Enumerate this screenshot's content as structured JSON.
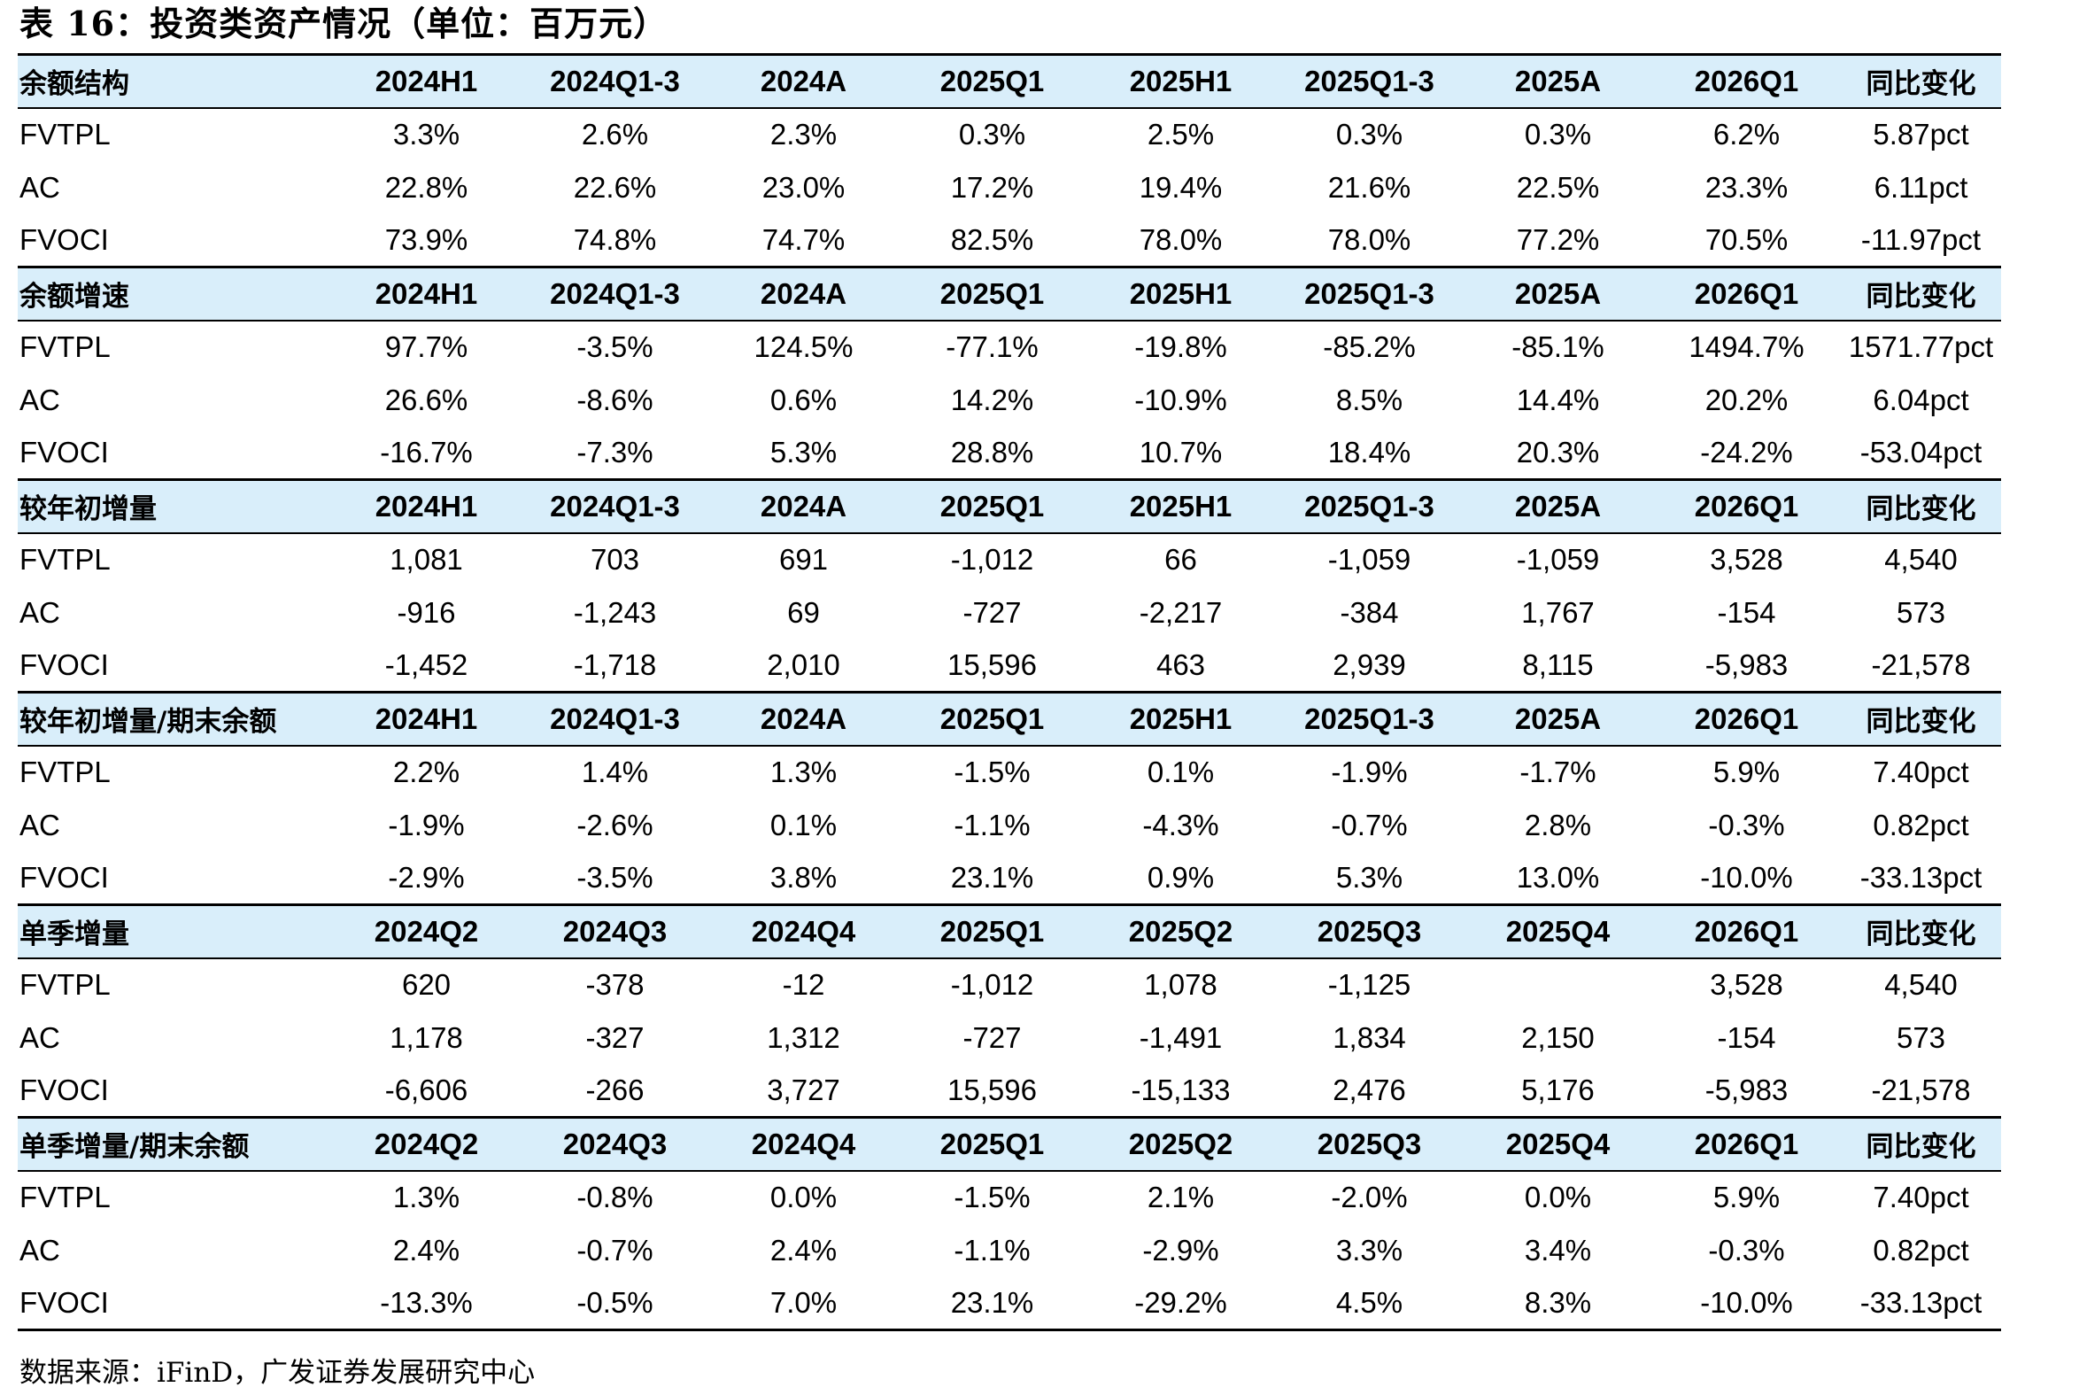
{
  "title": "表 16：投资类资产情况（单位：百万元）",
  "source": "数据来源：iFinD，广发证券发展研究中心",
  "sections": [
    {
      "label": "余额结构",
      "headers": [
        "2024H1",
        "2024Q1-3",
        "2024A",
        "2025Q1",
        "2025H1",
        "2025Q1-3",
        "2025A",
        "2026Q1",
        "同比变化"
      ],
      "rows": [
        {
          "name": "FVTPL",
          "values": [
            "3.3%",
            "2.6%",
            "2.3%",
            "0.3%",
            "2.5%",
            "0.3%",
            "0.3%",
            "6.2%",
            "5.87pct"
          ]
        },
        {
          "name": "AC",
          "values": [
            "22.8%",
            "22.6%",
            "23.0%",
            "17.2%",
            "19.4%",
            "21.6%",
            "22.5%",
            "23.3%",
            "6.11pct"
          ]
        },
        {
          "name": "FVOCI",
          "values": [
            "73.9%",
            "74.8%",
            "74.7%",
            "82.5%",
            "78.0%",
            "78.0%",
            "77.2%",
            "70.5%",
            "-11.97pct"
          ]
        }
      ]
    },
    {
      "label": "余额增速",
      "headers": [
        "2024H1",
        "2024Q1-3",
        "2024A",
        "2025Q1",
        "2025H1",
        "2025Q1-3",
        "2025A",
        "2026Q1",
        "同比变化"
      ],
      "rows": [
        {
          "name": "FVTPL",
          "values": [
            "97.7%",
            "-3.5%",
            "124.5%",
            "-77.1%",
            "-19.8%",
            "-85.2%",
            "-85.1%",
            "1494.7%",
            "1571.77pct"
          ]
        },
        {
          "name": "AC",
          "values": [
            "26.6%",
            "-8.6%",
            "0.6%",
            "14.2%",
            "-10.9%",
            "8.5%",
            "14.4%",
            "20.2%",
            "6.04pct"
          ]
        },
        {
          "name": "FVOCI",
          "values": [
            "-16.7%",
            "-7.3%",
            "5.3%",
            "28.8%",
            "10.7%",
            "18.4%",
            "20.3%",
            "-24.2%",
            "-53.04pct"
          ]
        }
      ]
    },
    {
      "label": "较年初增量",
      "headers": [
        "2024H1",
        "2024Q1-3",
        "2024A",
        "2025Q1",
        "2025H1",
        "2025Q1-3",
        "2025A",
        "2026Q1",
        "同比变化"
      ],
      "rows": [
        {
          "name": "FVTPL",
          "values": [
            "1,081",
            "703",
            "691",
            "-1,012",
            "66",
            "-1,059",
            "-1,059",
            "3,528",
            "4,540"
          ]
        },
        {
          "name": "AC",
          "values": [
            "-916",
            "-1,243",
            "69",
            "-727",
            "-2,217",
            "-384",
            "1,767",
            "-154",
            "573"
          ]
        },
        {
          "name": "FVOCI",
          "values": [
            "-1,452",
            "-1,718",
            "2,010",
            "15,596",
            "463",
            "2,939",
            "8,115",
            "-5,983",
            "-21,578"
          ]
        }
      ]
    },
    {
      "label": "较年初增量/期末余额",
      "headers": [
        "2024H1",
        "2024Q1-3",
        "2024A",
        "2025Q1",
        "2025H1",
        "2025Q1-3",
        "2025A",
        "2026Q1",
        "同比变化"
      ],
      "rows": [
        {
          "name": "FVTPL",
          "values": [
            "2.2%",
            "1.4%",
            "1.3%",
            "-1.5%",
            "0.1%",
            "-1.9%",
            "-1.7%",
            "5.9%",
            "7.40pct"
          ]
        },
        {
          "name": "AC",
          "values": [
            "-1.9%",
            "-2.6%",
            "0.1%",
            "-1.1%",
            "-4.3%",
            "-0.7%",
            "2.8%",
            "-0.3%",
            "0.82pct"
          ]
        },
        {
          "name": "FVOCI",
          "values": [
            "-2.9%",
            "-3.5%",
            "3.8%",
            "23.1%",
            "0.9%",
            "5.3%",
            "13.0%",
            "-10.0%",
            "-33.13pct"
          ]
        }
      ]
    },
    {
      "label": "单季增量",
      "headers": [
        "2024Q2",
        "2024Q3",
        "2024Q4",
        "2025Q1",
        "2025Q2",
        "2025Q3",
        "2025Q4",
        "2026Q1",
        "同比变化"
      ],
      "rows": [
        {
          "name": "FVTPL",
          "values": [
            "620",
            "-378",
            "-12",
            "-1,012",
            "1,078",
            "-1,125",
            "",
            "3,528",
            "4,540"
          ]
        },
        {
          "name": "AC",
          "values": [
            "1,178",
            "-327",
            "1,312",
            "-727",
            "-1,491",
            "1,834",
            "2,150",
            "-154",
            "573"
          ]
        },
        {
          "name": "FVOCI",
          "values": [
            "-6,606",
            "-266",
            "3,727",
            "15,596",
            "-15,133",
            "2,476",
            "5,176",
            "-5,983",
            "-21,578"
          ]
        }
      ]
    },
    {
      "label": "单季增量/期末余额",
      "headers": [
        "2024Q2",
        "2024Q3",
        "2024Q4",
        "2025Q1",
        "2025Q2",
        "2025Q3",
        "2025Q4",
        "2026Q1",
        "同比变化"
      ],
      "rows": [
        {
          "name": "FVTPL",
          "values": [
            "1.3%",
            "-0.8%",
            "0.0%",
            "-1.5%",
            "2.1%",
            "-2.0%",
            "0.0%",
            "5.9%",
            "7.40pct"
          ]
        },
        {
          "name": "AC",
          "values": [
            "2.4%",
            "-0.7%",
            "2.4%",
            "-1.1%",
            "-2.9%",
            "3.3%",
            "3.4%",
            "-0.3%",
            "0.82pct"
          ]
        },
        {
          "name": "FVOCI",
          "values": [
            "-13.3%",
            "-0.5%",
            "7.0%",
            "23.1%",
            "-29.2%",
            "4.5%",
            "8.3%",
            "-10.0%",
            "-33.13pct"
          ]
        }
      ]
    }
  ]
}
